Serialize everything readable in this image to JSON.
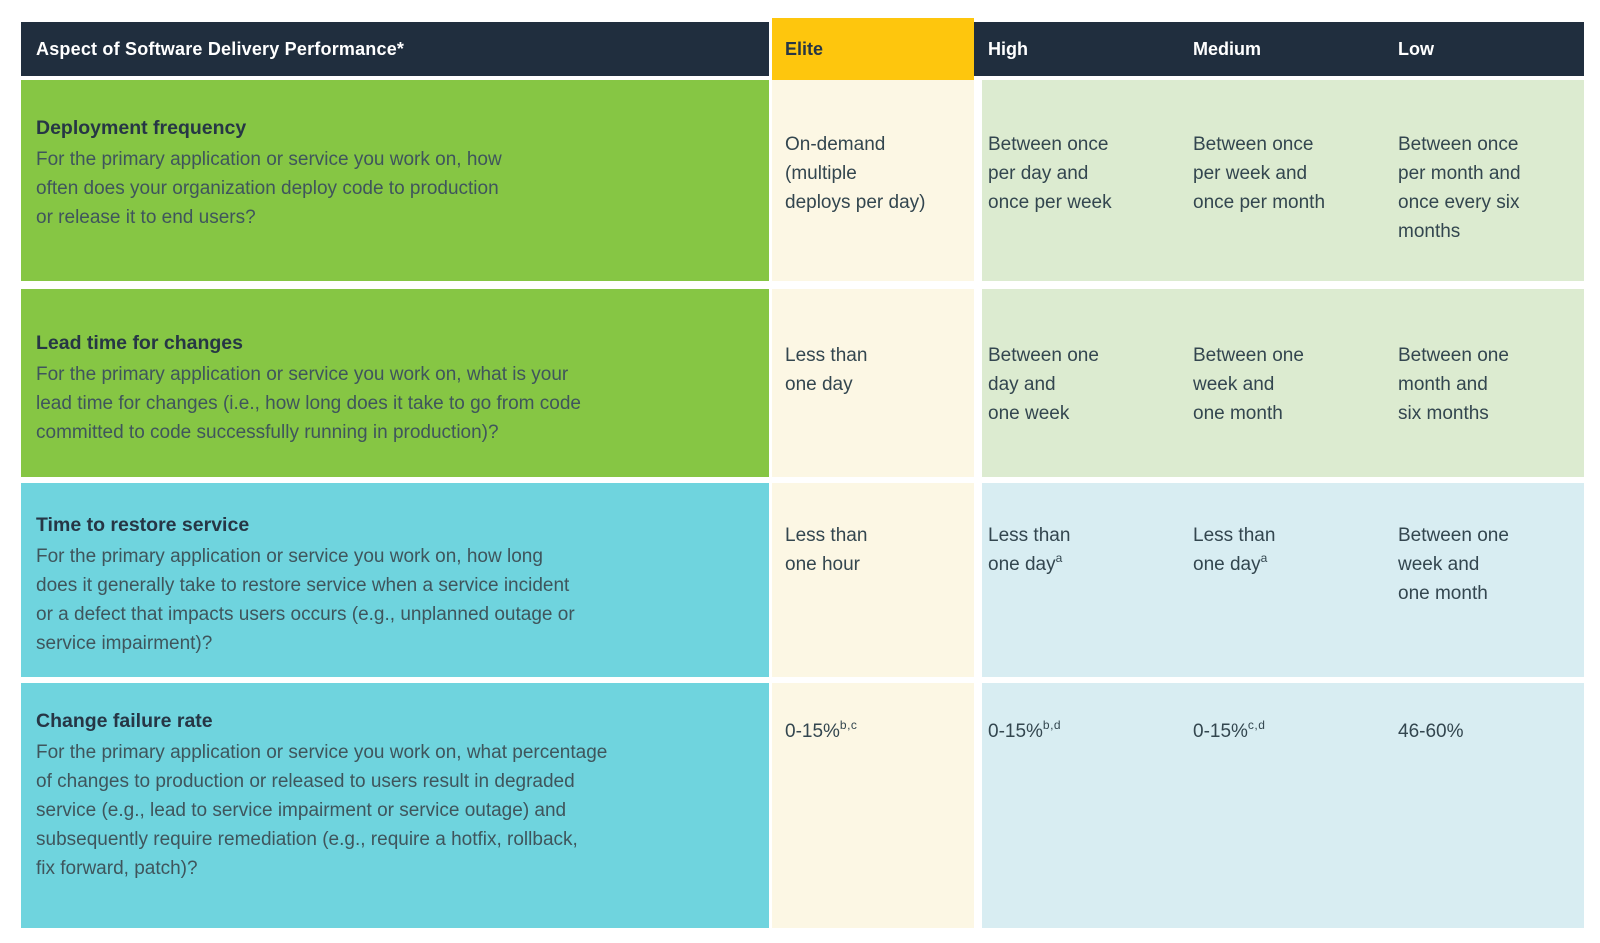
{
  "colors": {
    "navy": "#202e3e",
    "yellow": "#fec60d",
    "green": "#86c644",
    "cyan": "#6fd4de",
    "cream": "#fcf7e4",
    "light_green": "#dcebd0",
    "light_blue": "#d8edf2",
    "title_text": "#263645",
    "question_text": "#3f555c",
    "value_text": "#33464f"
  },
  "table": {
    "header": {
      "aspect_label": "Aspect of Software Delivery Performance*",
      "levels": [
        "Elite",
        "High",
        "Medium",
        "Low"
      ]
    },
    "rows": [
      {
        "title": "Deployment frequency",
        "question": "For the primary application or service you work on, how\noften does your organization deploy code to production\nor release it to end users?",
        "values": [
          {
            "text": "On-demand\n(multiple\ndeploys per day)",
            "sup": ""
          },
          {
            "text": "Between once\nper day and\nonce per week",
            "sup": ""
          },
          {
            "text": "Between once\nper week and\nonce per month",
            "sup": ""
          },
          {
            "text": "Between once\nper month and\nonce every six\nmonths",
            "sup": ""
          }
        ]
      },
      {
        "title": "Lead time for changes",
        "question": "For the primary application or service you work on, what is your\nlead time for changes (i.e., how long does it take to go from code\ncommitted to code successfully running in production)?",
        "values": [
          {
            "text": "Less than\none day",
            "sup": ""
          },
          {
            "text": "Between one\nday and\none week",
            "sup": ""
          },
          {
            "text": "Between one\nweek and\none month",
            "sup": ""
          },
          {
            "text": "Between one\nmonth and\nsix months",
            "sup": ""
          }
        ]
      },
      {
        "title": "Time to restore service",
        "question": "For the primary application or service you work on, how long\ndoes it generally take to restore service when a service incident\nor a defect that impacts users occurs (e.g., unplanned outage or\nservice impairment)?",
        "values": [
          {
            "text": "Less than\none hour",
            "sup": ""
          },
          {
            "text": "Less than\none day",
            "sup": "a"
          },
          {
            "text": "Less than\none day",
            "sup": "a"
          },
          {
            "text": "Between one\nweek and\none month",
            "sup": ""
          }
        ]
      },
      {
        "title": "Change failure rate",
        "question": "For the primary application or service you work on, what percentage\nof changes to production or released to users result in degraded\nservice (e.g., lead to service impairment or service outage) and\nsubsequently require remediation (e.g., require a hotfix, rollback,\nfix forward, patch)?",
        "values": [
          {
            "text": "0-15%",
            "sup": "b,c"
          },
          {
            "text": "0-15%",
            "sup": "b,d"
          },
          {
            "text": "0-15%",
            "sup": "c,d"
          },
          {
            "text": "46-60%",
            "sup": ""
          }
        ]
      }
    ]
  }
}
